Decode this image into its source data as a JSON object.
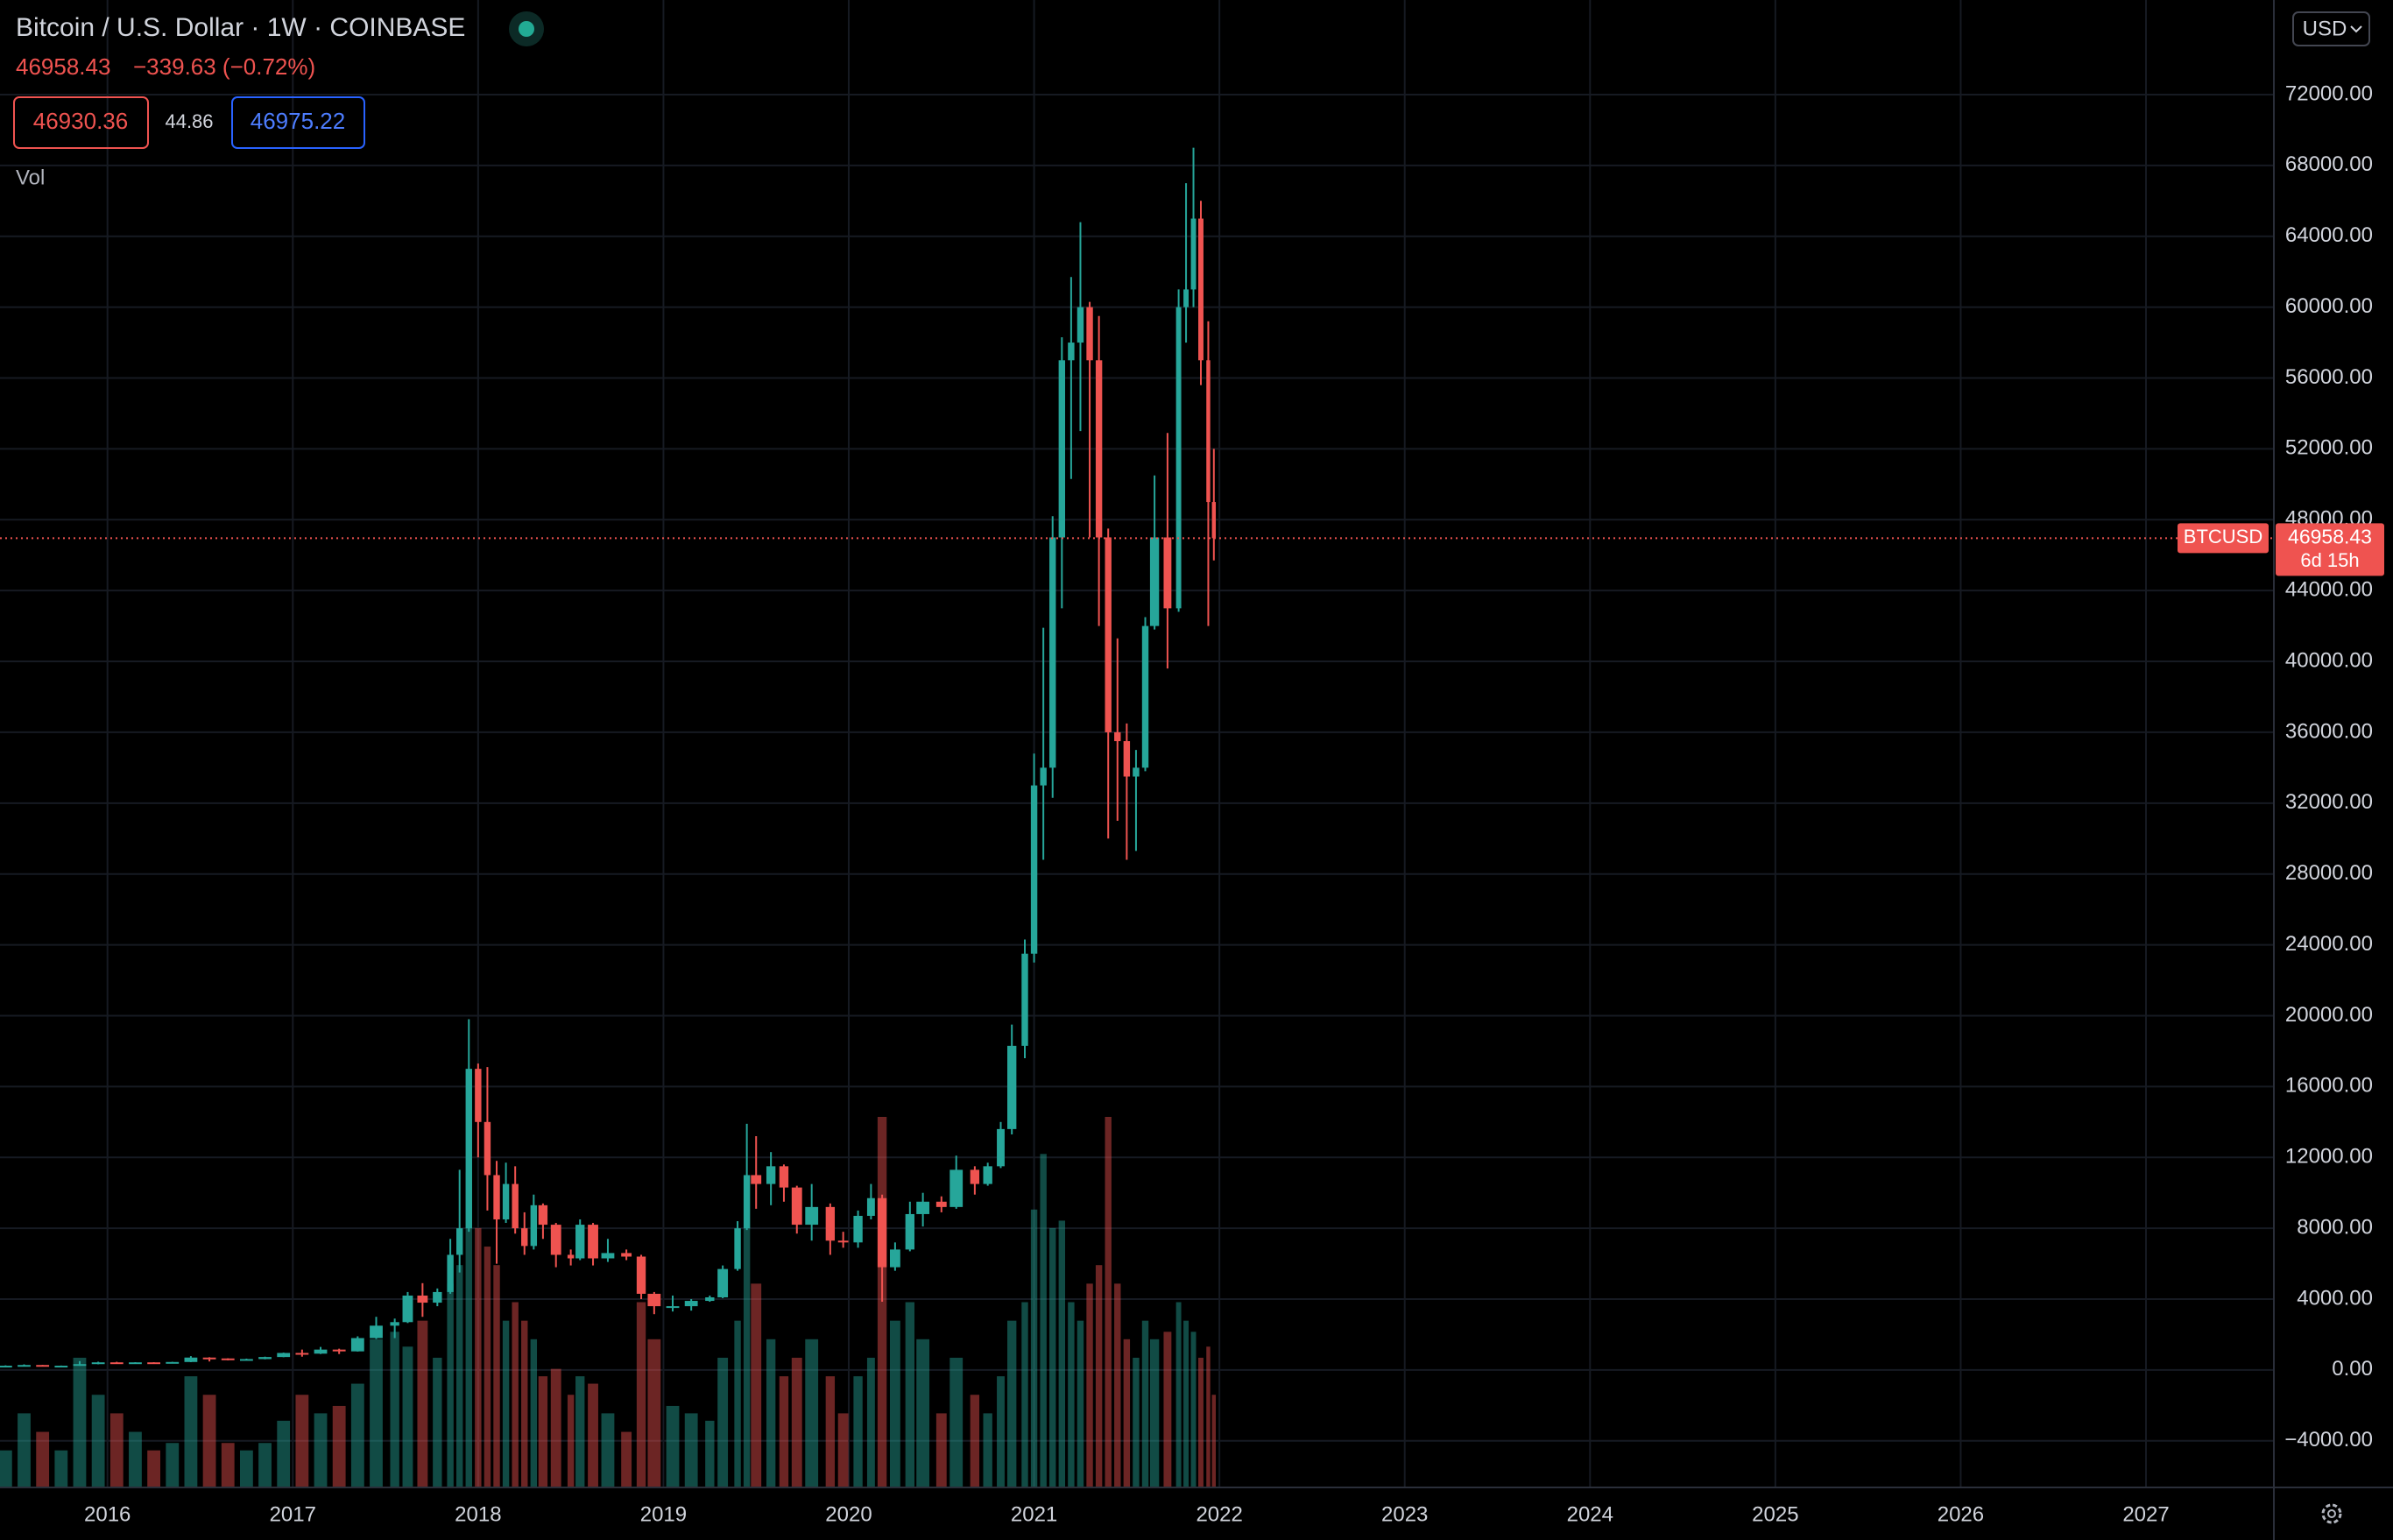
{
  "chart_data": {
    "type": "candlestick",
    "title": "Bitcoin / U.S. Dollar · 1W · COINBASE",
    "last_price": 46958.43,
    "change": "−339.63 (−0.72%)",
    "bid": 46930.36,
    "spread": 44.86,
    "ask": 46975.22,
    "volume_label": "Vol",
    "symbol": "BTCUSD",
    "countdown": "6d 15h",
    "currency": "USD",
    "up_color": "#26a69a",
    "down_color": "#ef5350",
    "grid": true,
    "xlim": [
      2015.42,
      2027.69
    ],
    "xticks": [
      2016,
      2017,
      2018,
      2019,
      2020,
      2021,
      2022,
      2023,
      2024,
      2025,
      2026,
      2027
    ],
    "ylim": [
      -6632,
      77340
    ],
    "yticks": [
      {
        "value": -4000,
        "label": "−4000.00"
      },
      {
        "value": 0,
        "label": "0.00"
      },
      {
        "value": 4000,
        "label": "4000.00"
      },
      {
        "value": 8000,
        "label": "8000.00"
      },
      {
        "value": 12000,
        "label": "12000.00"
      },
      {
        "value": 16000,
        "label": "16000.00"
      },
      {
        "value": 20000,
        "label": "20000.00"
      },
      {
        "value": 24000,
        "label": "24000.00"
      },
      {
        "value": 28000,
        "label": "28000.00"
      },
      {
        "value": 32000,
        "label": "32000.00"
      },
      {
        "value": 36000,
        "label": "36000.00"
      },
      {
        "value": 40000,
        "label": "40000.00"
      },
      {
        "value": 44000,
        "label": "44000.00"
      },
      {
        "value": 48000,
        "label": "48000.00"
      },
      {
        "value": 52000,
        "label": "52000.00"
      },
      {
        "value": 56000,
        "label": "56000.00"
      },
      {
        "value": 60000,
        "label": "60000.00"
      },
      {
        "value": 64000,
        "label": "64000.00"
      },
      {
        "value": 68000,
        "label": "68000.00"
      },
      {
        "value": 72000,
        "label": "72000.00"
      }
    ],
    "candles": {
      "x": [
        2015.45,
        2015.55,
        2015.65,
        2015.75,
        2015.85,
        2015.95,
        2016.05,
        2016.15,
        2016.25,
        2016.35,
        2016.45,
        2016.55,
        2016.65,
        2016.75,
        2016.85,
        2016.95,
        2017.05,
        2017.15,
        2017.25,
        2017.35,
        2017.45,
        2017.55,
        2017.62,
        2017.7,
        2017.78,
        2017.85,
        2017.9,
        2017.95,
        2018.0,
        2018.05,
        2018.1,
        2018.15,
        2018.2,
        2018.25,
        2018.3,
        2018.35,
        2018.42,
        2018.5,
        2018.55,
        2018.62,
        2018.7,
        2018.8,
        2018.88,
        2018.95,
        2019.05,
        2019.15,
        2019.25,
        2019.32,
        2019.4,
        2019.45,
        2019.5,
        2019.58,
        2019.65,
        2019.72,
        2019.8,
        2019.9,
        2019.97,
        2020.05,
        2020.12,
        2020.18,
        2020.25,
        2020.33,
        2020.4,
        2020.5,
        2020.58,
        2020.68,
        2020.75,
        2020.82,
        2020.88,
        2020.95,
        2021.0,
        2021.05,
        2021.1,
        2021.15,
        2021.2,
        2021.25,
        2021.3,
        2021.35,
        2021.4,
        2021.45,
        2021.5,
        2021.55,
        2021.6,
        2021.65,
        2021.72,
        2021.78,
        2021.82,
        2021.86,
        2021.9,
        2021.94,
        2021.97
      ],
      "open": [
        235,
        240,
        280,
        230,
        240,
        330,
        430,
        410,
        430,
        420,
        450,
        700,
        650,
        575,
        615,
        730,
        960,
        920,
        1150,
        1050,
        1800,
        2500,
        2700,
        4200,
        3800,
        4400,
        6500,
        8000,
        17000,
        14000,
        11000,
        8500,
        10500,
        8000,
        7000,
        9300,
        8200,
        6500,
        6300,
        8200,
        6300,
        6600,
        6400,
        4300,
        3600,
        3600,
        3900,
        4100,
        5700,
        8000,
        11000,
        10500,
        11500,
        10300,
        8200,
        9200,
        7300,
        7200,
        8700,
        9700,
        5800,
        6800,
        8800,
        9500,
        9200,
        11300,
        10500,
        11500,
        13600,
        18300,
        23500,
        33000,
        34000,
        47000,
        57000,
        58000,
        60000,
        57000,
        47000,
        36000,
        35500,
        33500,
        34000,
        42000,
        47000,
        43000,
        60000,
        61000,
        65000,
        57000,
        49000
      ],
      "high": [
        260,
        315,
        285,
        250,
        500,
        465,
        460,
        440,
        440,
        460,
        780,
        720,
        660,
        640,
        750,
        980,
        1150,
        1300,
        1200,
        1900,
        3000,
        2900,
        4400,
        4900,
        4600,
        7400,
        11300,
        19800,
        17300,
        17100,
        11800,
        11700,
        11500,
        8900,
        9900,
        9400,
        8300,
        6800,
        8500,
        8300,
        7400,
        6800,
        6500,
        4400,
        4200,
        4000,
        4200,
        5900,
        8400,
        13900,
        13200,
        12300,
        11600,
        10400,
        10500,
        9400,
        7800,
        9000,
        10500,
        9900,
        7200,
        9500,
        10000,
        9800,
        12100,
        11500,
        11700,
        14000,
        19500,
        24300,
        34800,
        41900,
        48200,
        58300,
        61700,
        64800,
        60300,
        59500,
        47500,
        41300,
        36500,
        35000,
        42500,
        50500,
        52900,
        61000,
        67000,
        69000,
        66000,
        59200,
        52000
      ],
      "low": [
        220,
        235,
        200,
        225,
        235,
        320,
        360,
        370,
        400,
        415,
        440,
        480,
        540,
        570,
        600,
        720,
        750,
        900,
        900,
        1040,
        1750,
        1800,
        2650,
        3000,
        3600,
        4300,
        5500,
        7800,
        12000,
        9000,
        6000,
        8300,
        7700,
        6500,
        6800,
        7400,
        5800,
        5900,
        6200,
        5900,
        6100,
        6200,
        4000,
        3150,
        3300,
        3350,
        3850,
        4050,
        5600,
        7900,
        9100,
        9300,
        9500,
        7700,
        7300,
        6500,
        6900,
        6900,
        8500,
        3850,
        5600,
        6700,
        8100,
        8900,
        9100,
        9900,
        10400,
        11400,
        13300,
        17600,
        23000,
        28800,
        32300,
        43000,
        50300,
        53000,
        47000,
        42000,
        30000,
        31000,
        28800,
        29300,
        33800,
        41800,
        39600,
        42800,
        58000,
        60000,
        55600,
        42000,
        45700
      ],
      "close": [
        240,
        280,
        230,
        240,
        330,
        430,
        410,
        430,
        420,
        450,
        700,
        650,
        575,
        615,
        730,
        960,
        920,
        1150,
        1050,
        1800,
        2500,
        2700,
        4200,
        3800,
        4400,
        6500,
        8000,
        17000,
        14000,
        11000,
        8500,
        10500,
        8000,
        7000,
        9300,
        8200,
        6500,
        6300,
        8200,
        6300,
        6600,
        6400,
        4300,
        3600,
        3600,
        3900,
        4100,
        5700,
        8000,
        11000,
        10500,
        11500,
        10300,
        8200,
        9200,
        7300,
        7200,
        8700,
        9700,
        5800,
        6800,
        8800,
        9500,
        9200,
        11300,
        10500,
        11500,
        13600,
        18300,
        23500,
        33000,
        34000,
        47000,
        57000,
        58000,
        60000,
        57000,
        47000,
        36000,
        35500,
        33500,
        34000,
        42000,
        47000,
        43000,
        60000,
        61000,
        65000,
        57000,
        49000,
        46958.43
      ],
      "volume": [
        10,
        20,
        15,
        10,
        35,
        25,
        20,
        15,
        10,
        12,
        30,
        25,
        12,
        10,
        12,
        18,
        25,
        20,
        22,
        28,
        40,
        42,
        38,
        45,
        35,
        55,
        60,
        85,
        70,
        65,
        60,
        45,
        50,
        45,
        40,
        30,
        32,
        25,
        30,
        28,
        20,
        15,
        50,
        40,
        22,
        20,
        18,
        35,
        45,
        70,
        55,
        40,
        30,
        35,
        40,
        30,
        20,
        30,
        35,
        100,
        45,
        50,
        40,
        20,
        35,
        25,
        20,
        30,
        45,
        50,
        75,
        90,
        70,
        72,
        50,
        45,
        55,
        60,
        100,
        55,
        40,
        35,
        45,
        40,
        42,
        50,
        45,
        42,
        35,
        38,
        25
      ]
    }
  }
}
